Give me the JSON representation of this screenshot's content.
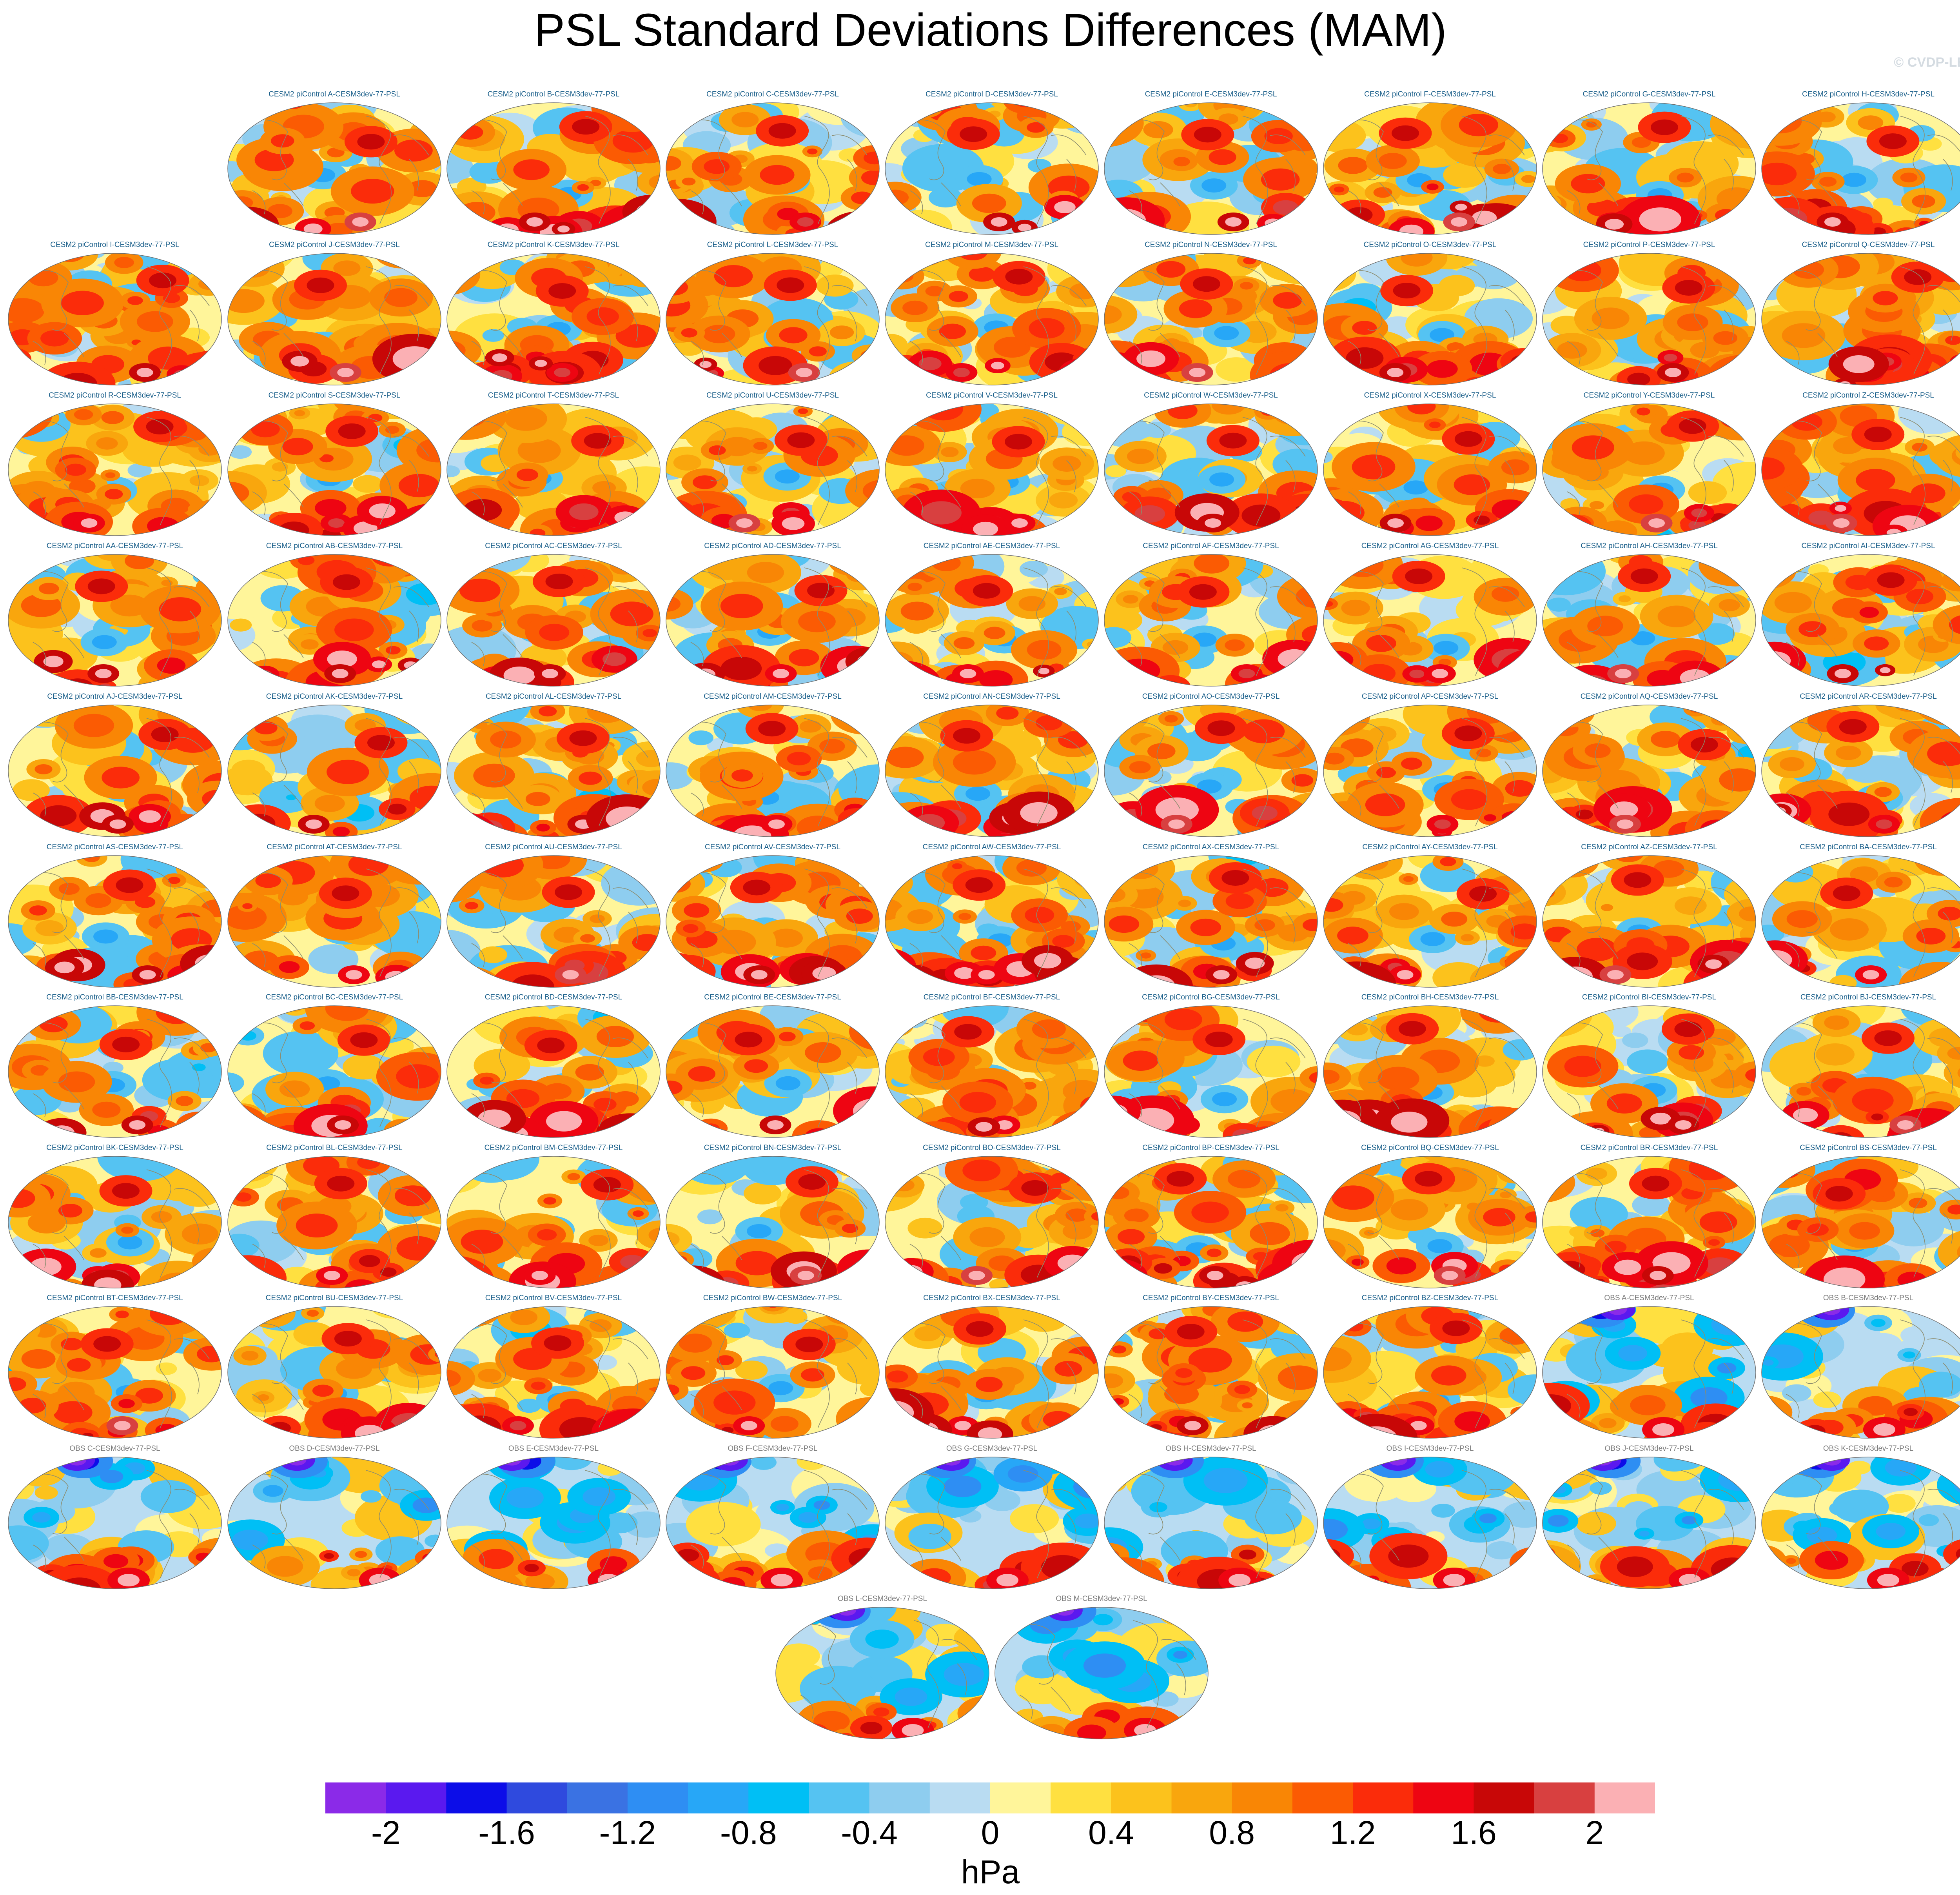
{
  "title": "PSL Standard Deviations Differences (MAM)",
  "credit": "© CVDP-LE",
  "colors": {
    "model_title": "#1a5f8a",
    "obs_title": "#7a7a7a",
    "ocean_neutral": "#b9dcf2",
    "land_lines": "#8c8c6e"
  },
  "panels": [
    {
      "label": "CESM2 piControl A-CESM3dev-77-PSL",
      "source": "model"
    },
    {
      "label": "CESM2 piControl B-CESM3dev-77-PSL",
      "source": "model"
    },
    {
      "label": "CESM2 piControl C-CESM3dev-77-PSL",
      "source": "model"
    },
    {
      "label": "CESM2 piControl D-CESM3dev-77-PSL",
      "source": "model"
    },
    {
      "label": "CESM2 piControl E-CESM3dev-77-PSL",
      "source": "model"
    },
    {
      "label": "CESM2 piControl F-CESM3dev-77-PSL",
      "source": "model"
    },
    {
      "label": "CESM2 piControl G-CESM3dev-77-PSL",
      "source": "model"
    },
    {
      "label": "CESM2 piControl H-CESM3dev-77-PSL",
      "source": "model"
    },
    {
      "label": "CESM2 piControl I-CESM3dev-77-PSL",
      "source": "model"
    },
    {
      "label": "CESM2 piControl J-CESM3dev-77-PSL",
      "source": "model"
    },
    {
      "label": "CESM2 piControl K-CESM3dev-77-PSL",
      "source": "model"
    },
    {
      "label": "CESM2 piControl L-CESM3dev-77-PSL",
      "source": "model"
    },
    {
      "label": "CESM2 piControl M-CESM3dev-77-PSL",
      "source": "model"
    },
    {
      "label": "CESM2 piControl N-CESM3dev-77-PSL",
      "source": "model"
    },
    {
      "label": "CESM2 piControl O-CESM3dev-77-PSL",
      "source": "model"
    },
    {
      "label": "CESM2 piControl P-CESM3dev-77-PSL",
      "source": "model"
    },
    {
      "label": "CESM2 piControl Q-CESM3dev-77-PSL",
      "source": "model"
    },
    {
      "label": "CESM2 piControl R-CESM3dev-77-PSL",
      "source": "model"
    },
    {
      "label": "CESM2 piControl S-CESM3dev-77-PSL",
      "source": "model"
    },
    {
      "label": "CESM2 piControl T-CESM3dev-77-PSL",
      "source": "model"
    },
    {
      "label": "CESM2 piControl U-CESM3dev-77-PSL",
      "source": "model"
    },
    {
      "label": "CESM2 piControl V-CESM3dev-77-PSL",
      "source": "model"
    },
    {
      "label": "CESM2 piControl W-CESM3dev-77-PSL",
      "source": "model"
    },
    {
      "label": "CESM2 piControl X-CESM3dev-77-PSL",
      "source": "model"
    },
    {
      "label": "CESM2 piControl Y-CESM3dev-77-PSL",
      "source": "model"
    },
    {
      "label": "CESM2 piControl Z-CESM3dev-77-PSL",
      "source": "model"
    },
    {
      "label": "CESM2 piControl AA-CESM3dev-77-PSL",
      "source": "model"
    },
    {
      "label": "CESM2 piControl AB-CESM3dev-77-PSL",
      "source": "model"
    },
    {
      "label": "CESM2 piControl AC-CESM3dev-77-PSL",
      "source": "model"
    },
    {
      "label": "CESM2 piControl AD-CESM3dev-77-PSL",
      "source": "model"
    },
    {
      "label": "CESM2 piControl AE-CESM3dev-77-PSL",
      "source": "model"
    },
    {
      "label": "CESM2 piControl AF-CESM3dev-77-PSL",
      "source": "model"
    },
    {
      "label": "CESM2 piControl AG-CESM3dev-77-PSL",
      "source": "model"
    },
    {
      "label": "CESM2 piControl AH-CESM3dev-77-PSL",
      "source": "model"
    },
    {
      "label": "CESM2 piControl AI-CESM3dev-77-PSL",
      "source": "model"
    },
    {
      "label": "CESM2 piControl AJ-CESM3dev-77-PSL",
      "source": "model"
    },
    {
      "label": "CESM2 piControl AK-CESM3dev-77-PSL",
      "source": "model"
    },
    {
      "label": "CESM2 piControl AL-CESM3dev-77-PSL",
      "source": "model"
    },
    {
      "label": "CESM2 piControl AM-CESM3dev-77-PSL",
      "source": "model"
    },
    {
      "label": "CESM2 piControl AN-CESM3dev-77-PSL",
      "source": "model"
    },
    {
      "label": "CESM2 piControl AO-CESM3dev-77-PSL",
      "source": "model"
    },
    {
      "label": "CESM2 piControl AP-CESM3dev-77-PSL",
      "source": "model"
    },
    {
      "label": "CESM2 piControl AQ-CESM3dev-77-PSL",
      "source": "model"
    },
    {
      "label": "CESM2 piControl AR-CESM3dev-77-PSL",
      "source": "model"
    },
    {
      "label": "CESM2 piControl AS-CESM3dev-77-PSL",
      "source": "model"
    },
    {
      "label": "CESM2 piControl AT-CESM3dev-77-PSL",
      "source": "model"
    },
    {
      "label": "CESM2 piControl AU-CESM3dev-77-PSL",
      "source": "model"
    },
    {
      "label": "CESM2 piControl AV-CESM3dev-77-PSL",
      "source": "model"
    },
    {
      "label": "CESM2 piControl AW-CESM3dev-77-PSL",
      "source": "model"
    },
    {
      "label": "CESM2 piControl AX-CESM3dev-77-PSL",
      "source": "model"
    },
    {
      "label": "CESM2 piControl AY-CESM3dev-77-PSL",
      "source": "model"
    },
    {
      "label": "CESM2 piControl AZ-CESM3dev-77-PSL",
      "source": "model"
    },
    {
      "label": "CESM2 piControl BA-CESM3dev-77-PSL",
      "source": "model"
    },
    {
      "label": "CESM2 piControl BB-CESM3dev-77-PSL",
      "source": "model"
    },
    {
      "label": "CESM2 piControl BC-CESM3dev-77-PSL",
      "source": "model"
    },
    {
      "label": "CESM2 piControl BD-CESM3dev-77-PSL",
      "source": "model"
    },
    {
      "label": "CESM2 piControl BE-CESM3dev-77-PSL",
      "source": "model"
    },
    {
      "label": "CESM2 piControl BF-CESM3dev-77-PSL",
      "source": "model"
    },
    {
      "label": "CESM2 piControl BG-CESM3dev-77-PSL",
      "source": "model"
    },
    {
      "label": "CESM2 piControl BH-CESM3dev-77-PSL",
      "source": "model"
    },
    {
      "label": "CESM2 piControl BI-CESM3dev-77-PSL",
      "source": "model"
    },
    {
      "label": "CESM2 piControl BJ-CESM3dev-77-PSL",
      "source": "model"
    },
    {
      "label": "CESM2 piControl BK-CESM3dev-77-PSL",
      "source": "model"
    },
    {
      "label": "CESM2 piControl BL-CESM3dev-77-PSL",
      "source": "model"
    },
    {
      "label": "CESM2 piControl BM-CESM3dev-77-PSL",
      "source": "model"
    },
    {
      "label": "CESM2 piControl BN-CESM3dev-77-PSL",
      "source": "model"
    },
    {
      "label": "CESM2 piControl BO-CESM3dev-77-PSL",
      "source": "model"
    },
    {
      "label": "CESM2 piControl BP-CESM3dev-77-PSL",
      "source": "model"
    },
    {
      "label": "CESM2 piControl BQ-CESM3dev-77-PSL",
      "source": "model"
    },
    {
      "label": "CESM2 piControl BR-CESM3dev-77-PSL",
      "source": "model"
    },
    {
      "label": "CESM2 piControl BS-CESM3dev-77-PSL",
      "source": "model"
    },
    {
      "label": "CESM2 piControl BT-CESM3dev-77-PSL",
      "source": "model"
    },
    {
      "label": "CESM2 piControl BU-CESM3dev-77-PSL",
      "source": "model"
    },
    {
      "label": "CESM2 piControl BV-CESM3dev-77-PSL",
      "source": "model"
    },
    {
      "label": "CESM2 piControl BW-CESM3dev-77-PSL",
      "source": "model"
    },
    {
      "label": "CESM2 piControl BX-CESM3dev-77-PSL",
      "source": "model"
    },
    {
      "label": "CESM2 piControl BY-CESM3dev-77-PSL",
      "source": "model"
    },
    {
      "label": "CESM2 piControl BZ-CESM3dev-77-PSL",
      "source": "model"
    },
    {
      "label": "OBS A-CESM3dev-77-PSL",
      "source": "obs"
    },
    {
      "label": "OBS B-CESM3dev-77-PSL",
      "source": "obs"
    },
    {
      "label": "OBS C-CESM3dev-77-PSL",
      "source": "obs"
    },
    {
      "label": "OBS D-CESM3dev-77-PSL",
      "source": "obs"
    },
    {
      "label": "OBS E-CESM3dev-77-PSL",
      "source": "obs"
    },
    {
      "label": "OBS F-CESM3dev-77-PSL",
      "source": "obs"
    },
    {
      "label": "OBS G-CESM3dev-77-PSL",
      "source": "obs"
    },
    {
      "label": "OBS H-CESM3dev-77-PSL",
      "source": "obs"
    },
    {
      "label": "OBS I-CESM3dev-77-PSL",
      "source": "obs"
    },
    {
      "label": "OBS J-CESM3dev-77-PSL",
      "source": "obs"
    },
    {
      "label": "OBS K-CESM3dev-77-PSL",
      "source": "obs"
    },
    {
      "label": "OBS L-CESM3dev-77-PSL",
      "source": "obs"
    },
    {
      "label": "OBS M-CESM3dev-77-PSL",
      "source": "obs"
    }
  ],
  "colorbar": {
    "units": "hPa",
    "min": -2.2,
    "max": 2.2,
    "step": 0.2,
    "colors": [
      "#8b2ae8",
      "#5a19ef",
      "#0c0de8",
      "#2f4ade",
      "#3a72e3",
      "#2e8ef3",
      "#27a7f7",
      "#00bff5",
      "#55c3f2",
      "#8ecdef",
      "#b9dcf2",
      "#fff59a",
      "#ffe040",
      "#fcc21c",
      "#f9a60d",
      "#f98605",
      "#fb5b03",
      "#fb2c0a",
      "#ee0512",
      "#c80707",
      "#d84040",
      "#fbb0b4"
    ],
    "tick_values": [
      -2,
      -1.6,
      -1.2,
      -0.8,
      -0.4,
      0,
      0.4,
      0.8,
      1.2,
      1.6,
      2
    ],
    "tick_labels": [
      "-2",
      "-1.6",
      "-1.2",
      "-0.8",
      "-0.4",
      "0",
      "0.4",
      "0.8",
      "1.2",
      "1.6",
      "2"
    ]
  }
}
